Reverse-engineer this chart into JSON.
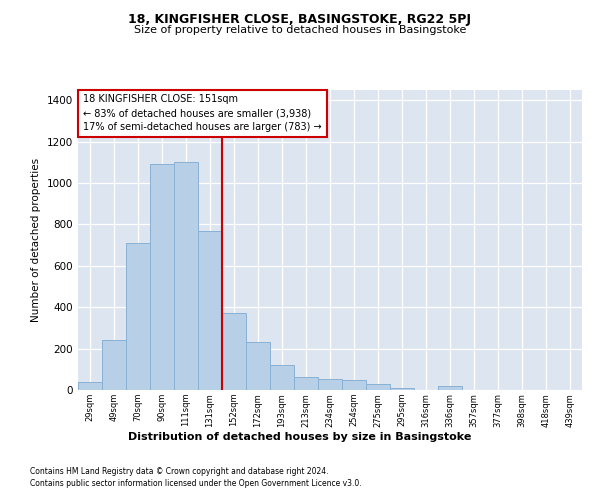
{
  "title1": "18, KINGFISHER CLOSE, BASINGSTOKE, RG22 5PJ",
  "title2": "Size of property relative to detached houses in Basingstoke",
  "xlabel": "Distribution of detached houses by size in Basingstoke",
  "ylabel": "Number of detached properties",
  "footnote1": "Contains HM Land Registry data © Crown copyright and database right 2024.",
  "footnote2": "Contains public sector information licensed under the Open Government Licence v3.0.",
  "property_label": "18 KINGFISHER CLOSE: 151sqm",
  "annotation_line1": "← 83% of detached houses are smaller (3,938)",
  "annotation_line2": "17% of semi-detached houses are larger (783) →",
  "bar_labels": [
    "29sqm",
    "49sqm",
    "70sqm",
    "90sqm",
    "111sqm",
    "131sqm",
    "152sqm",
    "172sqm",
    "193sqm",
    "213sqm",
    "234sqm",
    "254sqm",
    "275sqm",
    "295sqm",
    "316sqm",
    "336sqm",
    "357sqm",
    "377sqm",
    "398sqm",
    "418sqm",
    "439sqm"
  ],
  "bar_values": [
    40,
    240,
    710,
    1090,
    1100,
    770,
    370,
    230,
    120,
    65,
    55,
    50,
    30,
    10,
    0,
    20,
    0,
    0,
    0,
    0,
    0
  ],
  "bar_color": "#b8cfe8",
  "bar_edge_color": "#8ab0d4",
  "vline_idx": 6,
  "vline_color": "#cc0000",
  "ylim": [
    0,
    1450
  ],
  "yticks": [
    0,
    200,
    400,
    600,
    800,
    1000,
    1200,
    1400
  ],
  "bg_color": "#dde5f0",
  "annotation_box_color": "#cc0000",
  "annotation_bg_color": "#ffffff"
}
